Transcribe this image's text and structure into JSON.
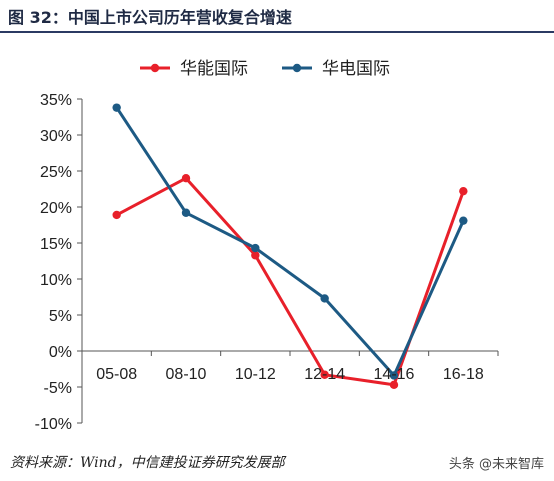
{
  "title": "图 32：中国上市公司历年营收复合增速",
  "source": "资料来源：Wind，中信建投证券研究发展部",
  "watermark": "头条 @未来智库",
  "chart_data": {
    "type": "line",
    "categories": [
      "05-08",
      "08-10",
      "10-12",
      "12-14",
      "14-16",
      "16-18"
    ],
    "series": [
      {
        "name": "华能国际",
        "color": "#e8202a",
        "values": [
          18.9,
          24.0,
          13.3,
          -3.3,
          -4.7,
          22.2
        ]
      },
      {
        "name": "华电国际",
        "color": "#1d5a84",
        "values": [
          33.8,
          19.2,
          14.3,
          7.3,
          -3.4,
          18.1
        ]
      }
    ],
    "ylim": [
      -10,
      35
    ],
    "yticks": [
      "35%",
      "30%",
      "25%",
      "20%",
      "15%",
      "10%",
      "5%",
      "0%",
      "-5%",
      "-10%"
    ],
    "legend": "top",
    "grid": false
  }
}
